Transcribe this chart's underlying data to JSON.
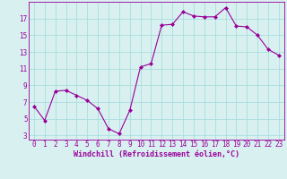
{
  "x": [
    0,
    1,
    2,
    3,
    4,
    5,
    6,
    7,
    8,
    9,
    10,
    11,
    12,
    13,
    14,
    15,
    16,
    17,
    18,
    19,
    20,
    21,
    22,
    23
  ],
  "y": [
    6.5,
    4.8,
    8.3,
    8.4,
    7.8,
    7.2,
    6.2,
    3.8,
    3.2,
    6.0,
    11.2,
    11.6,
    16.2,
    16.3,
    17.8,
    17.3,
    17.2,
    17.2,
    18.3,
    16.1,
    16.0,
    15.0,
    13.3,
    12.6
  ],
  "line_color": "#990099",
  "marker": "D",
  "marker_size": 2,
  "bg_color": "#d8f0f0",
  "grid_color": "#aadddd",
  "xlabel": "Windchill (Refroidissement éolien,°C)",
  "xlabel_color": "#990099",
  "tick_color": "#990099",
  "yticks": [
    3,
    5,
    7,
    9,
    11,
    13,
    15,
    17
  ],
  "ylim": [
    2.5,
    19.0
  ],
  "xlim": [
    -0.5,
    23.5
  ],
  "spine_color": "#990099",
  "font_size": 5.5,
  "xlabel_fontsize": 6.0
}
